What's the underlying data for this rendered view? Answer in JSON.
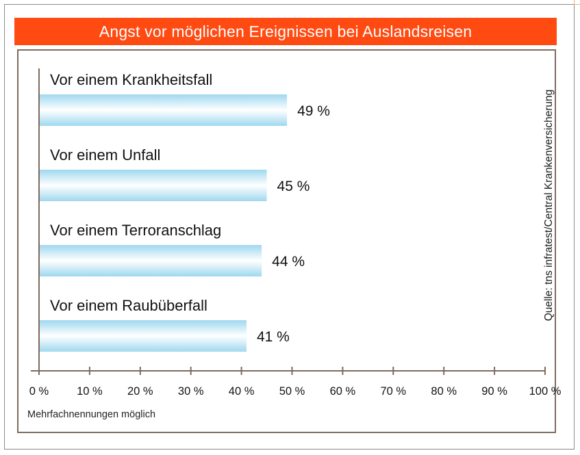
{
  "title": "Angst vor möglichen Ereignissen bei Auslandsreisen",
  "source": "Quelle: tns infratest/Central Krankenversicherung",
  "footnote": "Mehrfachnennungen möglich",
  "colors": {
    "title_bar": "#ff4a12",
    "bar_edge": "#9fd8ef",
    "bar_mid": "#ffffff",
    "axis": "#7d6a5e"
  },
  "chart_data": {
    "type": "bar",
    "orientation": "horizontal",
    "title": "Angst vor möglichen Ereignissen bei Auslandsreisen",
    "categories": [
      "Vor einem Krankheitsfall",
      "Vor einem Unfall",
      "Vor einem Terroranschlag",
      "Vor einem Raubüberfall"
    ],
    "values": [
      49,
      45,
      44,
      41
    ],
    "value_labels": [
      "49 %",
      "45 %",
      "44 %",
      "41 %"
    ],
    "xlim": [
      0,
      100
    ],
    "ticks": [
      0,
      10,
      20,
      30,
      40,
      50,
      60,
      70,
      80,
      90,
      100
    ],
    "tick_labels": [
      "0 %",
      "10 %",
      "20 %",
      "30 %",
      "40 %",
      "50 %",
      "60 %",
      "70 %",
      "80 %",
      "90 %",
      "100 %"
    ],
    "grid": false
  }
}
